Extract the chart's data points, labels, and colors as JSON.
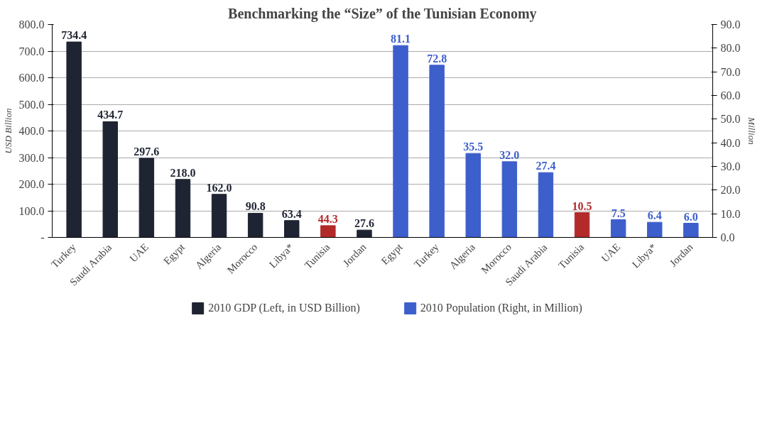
{
  "chart_data": {
    "type": "bar",
    "title": "Benchmarking the “Size” of the Tunisian Economy",
    "ylabel": "USD Billion",
    "y2label": "Million",
    "categories": [
      "Turkey",
      "Saudi Arabia",
      "UAE",
      "Egypt",
      "Algeria",
      "Morocco",
      "Libya*",
      "Tunisia",
      "Jordan",
      "Egypt",
      "Turkey",
      "Algeria",
      "Morocco",
      "Saudi Arabia",
      "Tunisia",
      "UAE",
      "Libya*",
      "Jordan"
    ],
    "series": [
      {
        "name": "2010 GDP (Left, in USD Billion)",
        "color": "#1f2433",
        "colors": [
          "#1f2433",
          "#1f2433",
          "#1f2433",
          "#1f2433",
          "#1f2433",
          "#1f2433",
          "#1f2433",
          "#b22a2a",
          "#1f2433",
          null,
          null,
          null,
          null,
          null,
          null,
          null,
          null,
          null
        ],
        "values": [
          734.4,
          434.7,
          297.6,
          218.0,
          162.0,
          90.8,
          63.4,
          44.3,
          27.6,
          null,
          null,
          null,
          null,
          null,
          null,
          null,
          null,
          null
        ],
        "value_labels": [
          "734.4",
          "434.7",
          "297.6",
          "218.0",
          "162.0",
          "90.8",
          "63.4",
          "44.3",
          "27.6",
          null,
          null,
          null,
          null,
          null,
          null,
          null,
          null,
          null
        ]
      },
      {
        "name": "2010 Population (Right, in Million)",
        "color": "#3d5fcc",
        "axis": "y2",
        "colors": [
          null,
          null,
          null,
          null,
          null,
          null,
          null,
          null,
          null,
          "#3d5fcc",
          "#3d5fcc",
          "#3d5fcc",
          "#3d5fcc",
          "#3d5fcc",
          "#b22a2a",
          "#3d5fcc",
          "#3d5fcc",
          "#3d5fcc"
        ],
        "values": [
          null,
          null,
          null,
          null,
          null,
          null,
          null,
          null,
          null,
          81.1,
          72.8,
          35.5,
          32.0,
          27.4,
          10.5,
          7.5,
          6.4,
          6.0
        ],
        "value_labels": [
          null,
          null,
          null,
          null,
          null,
          null,
          null,
          null,
          null,
          "81.1",
          "72.8",
          "35.5",
          "32.0",
          "27.4",
          "10.5",
          "7.5",
          "6.4",
          "6.0"
        ]
      }
    ],
    "ylim": [
      0,
      800
    ],
    "yticks": [
      {
        "value": 0,
        "label": "-"
      },
      {
        "value": 100,
        "label": "100.0"
      },
      {
        "value": 200,
        "label": "200.0"
      },
      {
        "value": 300,
        "label": "300.0"
      },
      {
        "value": 400,
        "label": "400.0"
      },
      {
        "value": 500,
        "label": "500.0"
      },
      {
        "value": 600,
        "label": "600.0"
      },
      {
        "value": 700,
        "label": "700.0"
      },
      {
        "value": 800,
        "label": "800.0"
      }
    ],
    "y2lim": [
      0,
      90
    ],
    "y2ticks": [
      {
        "value": 0,
        "label": "0.0"
      },
      {
        "value": 10,
        "label": "10.0"
      },
      {
        "value": 20,
        "label": "20.0"
      },
      {
        "value": 30,
        "label": "30.0"
      },
      {
        "value": 40,
        "label": "40.0"
      },
      {
        "value": 50,
        "label": "50.0"
      },
      {
        "value": 60,
        "label": "60.0"
      },
      {
        "value": 70,
        "label": "70.0"
      },
      {
        "value": 80,
        "label": "80.0"
      },
      {
        "value": 90,
        "label": "90.0"
      }
    ],
    "grid": "y",
    "legend": "bottom"
  }
}
